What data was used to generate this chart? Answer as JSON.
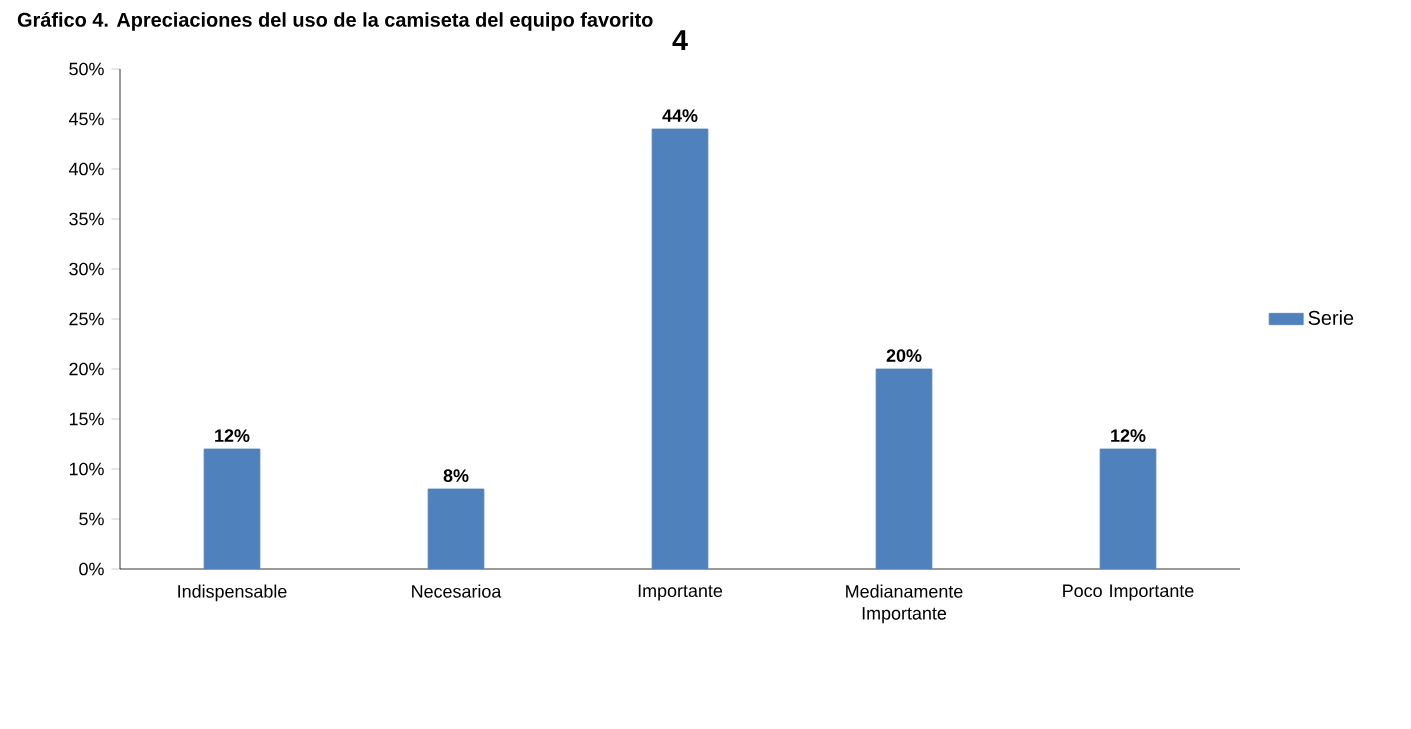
{
  "chart_data": {
    "type": "bar",
    "title": "Gráfico 4. Apreciaciones del uso de la camiseta del equipo favorito",
    "subtitle": "4",
    "categories": [
      "Indispensable",
      "Necesarioa",
      "Importante",
      "Medianamente Importante",
      "Poco Importante"
    ],
    "series": [
      {
        "name": "Serie",
        "color": "#4f81bd",
        "values": [
          12,
          8,
          44,
          20,
          12
        ],
        "value_labels": [
          "12%",
          "8%",
          "44%",
          "20%",
          "12%"
        ]
      }
    ],
    "ylim": [
      0,
      50
    ],
    "yticks": [
      {
        "value": 0,
        "label": "0%"
      },
      {
        "value": 5,
        "label": "5%"
      },
      {
        "value": 10,
        "label": "10%"
      },
      {
        "value": 15,
        "label": "15%"
      },
      {
        "value": 20,
        "label": "20%"
      },
      {
        "value": 25,
        "label": "25%"
      },
      {
        "value": 30,
        "label": "30%"
      },
      {
        "value": 35,
        "label": "35%"
      },
      {
        "value": 40,
        "label": "40%"
      },
      {
        "value": 45,
        "label": "45%"
      },
      {
        "value": 50,
        "label": "50%"
      }
    ],
    "grid": false,
    "legend": "right"
  }
}
